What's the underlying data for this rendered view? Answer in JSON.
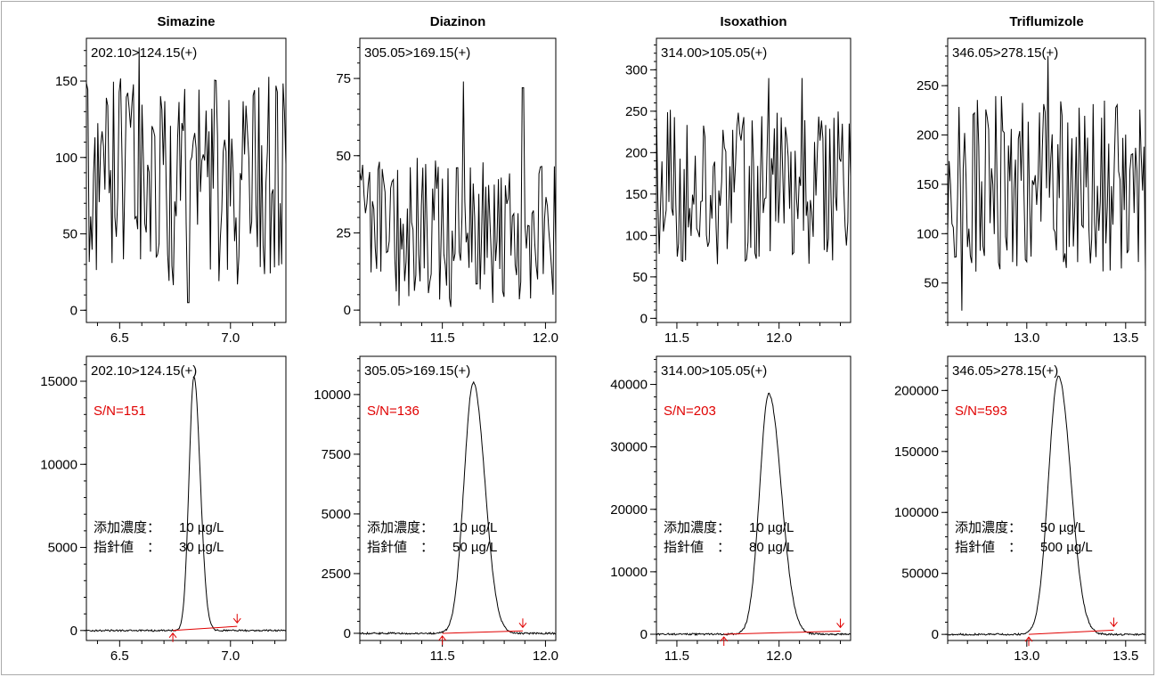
{
  "page": {
    "accent": "#e00000"
  },
  "panels": [
    {
      "compound": "Simazine",
      "transition": "202.10>124.15(+)",
      "spiked_label": "添加濃度：",
      "spiked_value": "10 µg/L",
      "guideline_label": "指針値　：",
      "guideline_value": "30 µg/L",
      "sn": "S/N=151",
      "x_range": [
        6.35,
        7.25
      ],
      "x_ticks": [
        {
          "v": 6.5,
          "label": "6.5"
        },
        {
          "v": 7.0,
          "label": "7.0"
        }
      ],
      "noise": {
        "y_range": [
          -8,
          178
        ],
        "y_ticks": [
          {
            "v": 0,
            "label": "0"
          },
          {
            "v": 50,
            "label": "50"
          },
          {
            "v": 100,
            "label": "100"
          },
          {
            "v": 150,
            "label": "150"
          }
        ],
        "seed": 11,
        "base": 85,
        "amp": 70,
        "spikes": [
          [
            6.59,
            172
          ],
          [
            6.81,
            5
          ]
        ]
      },
      "peak": {
        "y_range": [
          -600,
          16500
        ],
        "y_ticks": [
          {
            "v": 0,
            "label": "0"
          },
          {
            "v": 5000,
            "label": "5000"
          },
          {
            "v": 10000,
            "label": "10000"
          },
          {
            "v": 15000,
            "label": "15000"
          }
        ],
        "center": 6.835,
        "height": 15300,
        "sigma": 0.022,
        "tail": 1.3,
        "baseline_start": 6.74,
        "baseline_end": 7.03,
        "baseline_rise": 250
      }
    },
    {
      "compound": "Diazinon",
      "transition": "305.05>169.15(+)",
      "spiked_label": "添加濃度：",
      "spiked_value": "10 µg/L",
      "guideline_label": "指針値　：",
      "guideline_value": "50 µg/L",
      "sn": "S/N=136",
      "x_range": [
        11.1,
        12.05
      ],
      "x_ticks": [
        {
          "v": 11.5,
          "label": "11.5"
        },
        {
          "v": 12.0,
          "label": "12.0"
        }
      ],
      "noise": {
        "y_range": [
          -4,
          88
        ],
        "y_ticks": [
          {
            "v": 0,
            "label": "0"
          },
          {
            "v": 25,
            "label": "25"
          },
          {
            "v": 50,
            "label": "50"
          },
          {
            "v": 75,
            "label": "75"
          }
        ],
        "seed": 23,
        "base": 25,
        "amp": 25,
        "spikes": [
          [
            11.6,
            74
          ],
          [
            11.89,
            72
          ]
        ]
      },
      "peak": {
        "y_range": [
          -300,
          11600
        ],
        "y_ticks": [
          {
            "v": 0,
            "label": "0"
          },
          {
            "v": 2500,
            "label": "2500"
          },
          {
            "v": 5000,
            "label": "5000"
          },
          {
            "v": 7500,
            "label": "7500"
          },
          {
            "v": 10000,
            "label": "10000"
          }
        ],
        "center": 11.65,
        "height": 10500,
        "sigma": 0.045,
        "tail": 1.25,
        "baseline_start": 11.5,
        "baseline_end": 11.89,
        "baseline_rise": 100
      }
    },
    {
      "compound": "Isoxathion",
      "transition": "314.00>105.05(+)",
      "spiked_label": "添加濃度：",
      "spiked_value": "10 µg/L",
      "guideline_label": "指針値　：",
      "guideline_value": "80 µg/L",
      "sn": "S/N=203",
      "x_range": [
        11.4,
        12.35
      ],
      "x_ticks": [
        {
          "v": 11.5,
          "label": "11.5"
        },
        {
          "v": 12.0,
          "label": "12.0"
        }
      ],
      "noise": {
        "y_range": [
          -5,
          338
        ],
        "y_ticks": [
          {
            "v": 0,
            "label": "0"
          },
          {
            "v": 50,
            "label": "50"
          },
          {
            "v": 100,
            "label": "100"
          },
          {
            "v": 150,
            "label": "150"
          },
          {
            "v": 200,
            "label": "200"
          },
          {
            "v": 250,
            "label": "250"
          },
          {
            "v": 300,
            "label": "300"
          }
        ],
        "seed": 37,
        "base": 160,
        "amp": 95,
        "spikes": [
          [
            11.95,
            290
          ],
          [
            12.11,
            290
          ]
        ]
      },
      "peak": {
        "y_range": [
          -1000,
          44500
        ],
        "y_ticks": [
          {
            "v": 0,
            "label": "0"
          },
          {
            "v": 10000,
            "label": "10000"
          },
          {
            "v": 20000,
            "label": "20000"
          },
          {
            "v": 30000,
            "label": "30000"
          },
          {
            "v": 40000,
            "label": "40000"
          }
        ],
        "center": 11.95,
        "height": 38500,
        "sigma": 0.045,
        "tail": 1.35,
        "baseline_start": 11.73,
        "baseline_end": 12.3,
        "baseline_rise": 500
      }
    },
    {
      "compound": "Triflumizole",
      "transition": "346.05>278.15(+)",
      "spiked_label": "添加濃度：",
      "spiked_value": " 50 µg/L",
      "guideline_label": "指針値　：",
      "guideline_value": "500 µg/L",
      "sn": "S/N=593",
      "x_range": [
        12.6,
        13.6
      ],
      "x_ticks": [
        {
          "v": 13.0,
          "label": "13.0"
        },
        {
          "v": 13.5,
          "label": "13.5"
        }
      ],
      "noise": {
        "y_range": [
          10,
          298
        ],
        "y_ticks": [
          {
            "v": 50,
            "label": "50"
          },
          {
            "v": 100,
            "label": "100"
          },
          {
            "v": 150,
            "label": "150"
          },
          {
            "v": 200,
            "label": "200"
          },
          {
            "v": 250,
            "label": "250"
          }
        ],
        "seed": 53,
        "base": 150,
        "amp": 90,
        "spikes": [
          [
            13.11,
            280
          ],
          [
            12.67,
            22
          ]
        ]
      },
      "peak": {
        "y_range": [
          -5000,
          228000
        ],
        "y_ticks": [
          {
            "v": 0,
            "label": "0"
          },
          {
            "v": 50000,
            "label": "50000"
          },
          {
            "v": 100000,
            "label": "100000"
          },
          {
            "v": 150000,
            "label": "150000"
          },
          {
            "v": 200000,
            "label": "200000"
          }
        ],
        "center": 13.16,
        "height": 212000,
        "sigma": 0.05,
        "tail": 1.25,
        "baseline_start": 13.01,
        "baseline_end": 13.44,
        "baseline_rise": 3500
      }
    }
  ],
  "chart_data": [
    {
      "type": "line",
      "title": "Simazine",
      "series": [
        {
          "name": "202.10>124.15(+)"
        }
      ],
      "xlim": [
        6.35,
        7.25
      ],
      "ylim": [
        -8,
        178
      ],
      "note": "noise trace, y 0–150"
    },
    {
      "type": "line",
      "title": "Simazine",
      "series": [
        {
          "name": "202.10>124.15(+)"
        }
      ],
      "xlim": [
        6.35,
        7.25
      ],
      "ylim": [
        -600,
        16500
      ],
      "peak_x": 6.835,
      "peak_y": 15300,
      "sn": "S/N=151"
    },
    {
      "type": "line",
      "title": "Diazinon",
      "series": [
        {
          "name": "305.05>169.15(+)"
        }
      ],
      "xlim": [
        11.1,
        12.05
      ],
      "ylim": [
        -4,
        88
      ]
    },
    {
      "type": "line",
      "title": "Diazinon",
      "series": [
        {
          "name": "305.05>169.15(+)"
        }
      ],
      "xlim": [
        11.1,
        12.05
      ],
      "ylim": [
        -300,
        11600
      ],
      "peak_x": 11.65,
      "peak_y": 10500,
      "sn": "S/N=136"
    },
    {
      "type": "line",
      "title": "Isoxathion",
      "series": [
        {
          "name": "314.00>105.05(+)"
        }
      ],
      "xlim": [
        11.4,
        12.35
      ],
      "ylim": [
        -5,
        338
      ]
    },
    {
      "type": "line",
      "title": "Isoxathion",
      "series": [
        {
          "name": "314.00>105.05(+)"
        }
      ],
      "xlim": [
        11.4,
        12.35
      ],
      "ylim": [
        -1000,
        44500
      ],
      "peak_x": 11.95,
      "peak_y": 38500,
      "sn": "S/N=203"
    },
    {
      "type": "line",
      "title": "Triflumizole",
      "series": [
        {
          "name": "346.05>278.15(+)"
        }
      ],
      "xlim": [
        12.6,
        13.6
      ],
      "ylim": [
        10,
        298
      ]
    },
    {
      "type": "line",
      "title": "Triflumizole",
      "series": [
        {
          "name": "346.05>278.15(+)"
        }
      ],
      "xlim": [
        12.6,
        13.6
      ],
      "ylim": [
        -5000,
        228000
      ],
      "peak_x": 13.16,
      "peak_y": 212000,
      "sn": "S/N=593"
    }
  ]
}
